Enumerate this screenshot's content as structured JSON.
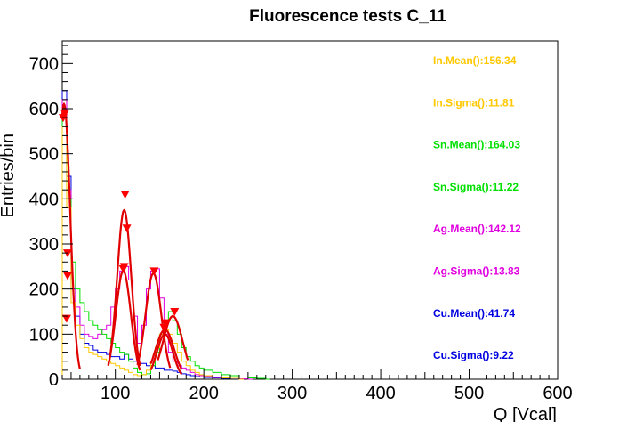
{
  "chart_data": {
    "type": "line",
    "title": "Fluorescence tests C_11",
    "xlabel": "Q [Vcal]",
    "ylabel": "Entries/bin",
    "xlim": [
      40,
      600
    ],
    "ylim": [
      0,
      750
    ],
    "x_ticks": [
      100,
      200,
      300,
      400,
      500,
      600
    ],
    "y_ticks": [
      0,
      100,
      200,
      300,
      400,
      500,
      600,
      700
    ],
    "grid": false,
    "stats": [
      {
        "text": "In.Mean():156.34",
        "color": "#ffc800"
      },
      {
        "text": "In.Sigma():11.81",
        "color": "#ffc800"
      },
      {
        "text": "Sn.Mean():164.03",
        "color": "#00e000"
      },
      {
        "text": "Sn.Sigma():11.22",
        "color": "#00e000"
      },
      {
        "text": "Ag.Mean():142.12",
        "color": "#e000e0"
      },
      {
        "text": "Ag.Sigma():13.83",
        "color": "#e000e0"
      },
      {
        "text": "Cu.Mean():41.74",
        "color": "#0000e0"
      },
      {
        "text": "Cu.Sigma():9.22",
        "color": "#0000e0"
      }
    ],
    "histograms": [
      {
        "id": "cu",
        "color": "#0000e0",
        "x": [
          40,
          45,
          50,
          55,
          60,
          65,
          70,
          75,
          80,
          85,
          90,
          95,
          100,
          105,
          110,
          115,
          120,
          125,
          130,
          135,
          140,
          145,
          150,
          155,
          160,
          165,
          170,
          175,
          180,
          185,
          190,
          195,
          200,
          210,
          220,
          230,
          240
        ],
        "y": [
          640,
          450,
          200,
          140,
          100,
          80,
          75,
          65,
          60,
          60,
          55,
          50,
          50,
          45,
          55,
          45,
          40,
          35,
          35,
          30,
          30,
          25,
          25,
          20,
          20,
          18,
          15,
          12,
          10,
          8,
          6,
          5,
          4,
          3,
          2,
          1,
          0
        ]
      },
      {
        "id": "ag",
        "color": "#e000e0",
        "x": [
          40,
          45,
          50,
          55,
          60,
          65,
          70,
          75,
          80,
          85,
          90,
          95,
          100,
          105,
          110,
          115,
          120,
          125,
          130,
          135,
          140,
          145,
          150,
          155,
          160,
          165,
          170,
          175,
          180,
          185,
          190,
          195,
          200,
          210,
          220,
          230,
          240,
          250
        ],
        "y": [
          620,
          420,
          220,
          160,
          120,
          100,
          95,
          90,
          100,
          110,
          120,
          160,
          200,
          240,
          250,
          220,
          140,
          80,
          120,
          200,
          240,
          245,
          180,
          100,
          60,
          40,
          30,
          25,
          20,
          15,
          10,
          8,
          6,
          4,
          3,
          2,
          1,
          0
        ]
      },
      {
        "id": "sn",
        "color": "#00e000",
        "x": [
          40,
          45,
          50,
          55,
          60,
          65,
          70,
          75,
          80,
          85,
          90,
          95,
          100,
          105,
          110,
          115,
          120,
          125,
          130,
          135,
          140,
          145,
          150,
          155,
          160,
          165,
          170,
          175,
          180,
          185,
          190,
          195,
          200,
          210,
          220,
          230,
          240,
          250,
          260,
          270
        ],
        "y": [
          580,
          400,
          260,
          200,
          170,
          150,
          130,
          120,
          110,
          100,
          90,
          80,
          70,
          60,
          55,
          40,
          25,
          15,
          10,
          12,
          30,
          60,
          100,
          130,
          150,
          130,
          100,
          70,
          50,
          40,
          30,
          25,
          20,
          15,
          10,
          8,
          5,
          3,
          2,
          0
        ]
      },
      {
        "id": "in",
        "color": "#ffc800",
        "x": [
          40,
          45,
          50,
          55,
          60,
          65,
          70,
          75,
          80,
          85,
          90,
          95,
          100,
          105,
          110,
          115,
          120,
          125,
          130,
          135,
          140,
          145,
          150,
          155,
          160,
          165,
          170,
          175,
          180,
          185,
          190,
          195,
          200,
          210,
          220,
          230,
          240
        ],
        "y": [
          560,
          380,
          170,
          120,
          90,
          70,
          60,
          55,
          50,
          45,
          40,
          35,
          30,
          25,
          20,
          15,
          10,
          8,
          10,
          20,
          40,
          70,
          100,
          110,
          100,
          80,
          60,
          40,
          30,
          20,
          15,
          10,
          8,
          5,
          3,
          2,
          0
        ]
      }
    ],
    "fits": [
      {
        "mean": 42,
        "sigma": 7,
        "amp": 610,
        "from": 40,
        "to": 60
      },
      {
        "mean": 110,
        "sigma": 8,
        "amp": 375,
        "from": 92,
        "to": 128
      },
      {
        "mean": 109,
        "sigma": 8.5,
        "amp": 240,
        "from": 92,
        "to": 128
      },
      {
        "mean": 143,
        "sigma": 9,
        "amp": 235,
        "from": 125,
        "to": 162
      },
      {
        "mean": 156,
        "sigma": 10.5,
        "amp": 110,
        "from": 140,
        "to": 175
      },
      {
        "mean": 156,
        "sigma": 9,
        "amp": 100,
        "from": 140,
        "to": 175
      },
      {
        "mean": 165,
        "sigma": 11,
        "amp": 140,
        "from": 148,
        "to": 182
      }
    ],
    "markers": [
      {
        "x": 41,
        "y": 580
      },
      {
        "x": 43,
        "y": 590
      },
      {
        "x": 46,
        "y": 280
      },
      {
        "x": 46,
        "y": 230
      },
      {
        "x": 45,
        "y": 135
      },
      {
        "x": 111,
        "y": 410
      },
      {
        "x": 113,
        "y": 335
      },
      {
        "x": 110,
        "y": 250
      },
      {
        "x": 109,
        "y": 245
      },
      {
        "x": 144,
        "y": 240
      },
      {
        "x": 157,
        "y": 125
      },
      {
        "x": 155,
        "y": 115
      },
      {
        "x": 167,
        "y": 150
      }
    ]
  }
}
